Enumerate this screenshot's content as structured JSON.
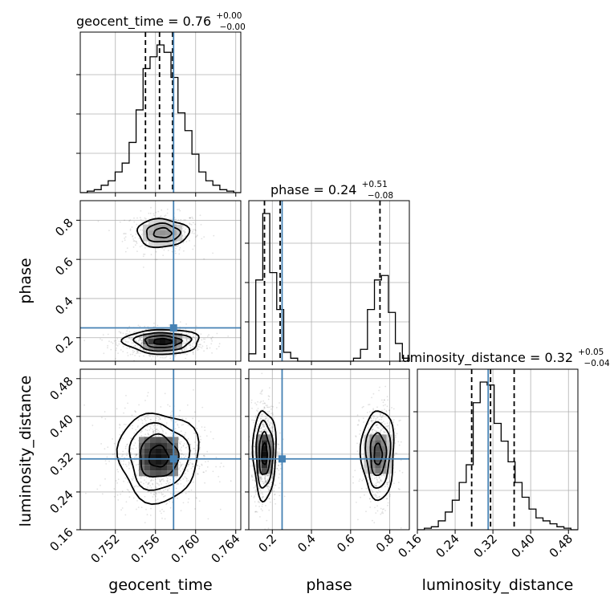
{
  "chart_data": {
    "type": "corner",
    "parameters": [
      {
        "name": "geocent_time",
        "axis_label": "geocent_time",
        "range": [
          0.7485,
          0.7645
        ],
        "ticks": [
          "0.752",
          "0.756",
          "0.760",
          "0.764"
        ],
        "tick_values": [
          0.752,
          0.756,
          0.76,
          0.764
        ],
        "truth": 0.7578,
        "median": 0.7564,
        "q16": 0.755,
        "q84": 0.7577,
        "title_main": "geocent_time = 0.76",
        "title_sup": "+0.00",
        "title_sub": "−0.00",
        "hist_bins": [
          0.0,
          0.01,
          0.02,
          0.05,
          0.08,
          0.14,
          0.2,
          0.34,
          0.56,
          0.84,
          0.92,
          1.0,
          0.95,
          0.78,
          0.54,
          0.42,
          0.26,
          0.14,
          0.08,
          0.05,
          0.02,
          0.01,
          0.0
        ]
      },
      {
        "name": "phase",
        "axis_label": "phase",
        "range": [
          0.08,
          0.9
        ],
        "ticks": [
          "0.2",
          "0.4",
          "0.6",
          "0.8"
        ],
        "tick_values": [
          0.2,
          0.4,
          0.6,
          0.8
        ],
        "truth": 0.25,
        "median": 0.24,
        "q16": 0.16,
        "q84": 0.75,
        "title_main": "phase = 0.24",
        "title_sup": "+0.51",
        "title_sub": "−0.08",
        "hist_bins": [
          0.05,
          0.55,
          1.0,
          0.6,
          0.35,
          0.06,
          0.02,
          0.0,
          0.0,
          0.0,
          0.0,
          0.0,
          0.0,
          0.0,
          0.0,
          0.02,
          0.08,
          0.35,
          0.55,
          0.58,
          0.33,
          0.12,
          0.02
        ]
      },
      {
        "name": "luminosity_distance",
        "axis_label": "luminosity_distance",
        "range": [
          0.16,
          0.5
        ],
        "ticks": [
          "0.16",
          "0.24",
          "0.32",
          "0.40",
          "0.48"
        ],
        "tick_values": [
          0.16,
          0.24,
          0.32,
          0.4,
          0.48
        ],
        "truth": 0.31,
        "median": 0.315,
        "q16": 0.275,
        "q84": 0.365,
        "title_main": "luminosity_distance = 0.32",
        "title_sup": "+0.05",
        "title_sub": "−0.04",
        "hist_bins": [
          0.0,
          0.01,
          0.02,
          0.06,
          0.12,
          0.2,
          0.32,
          0.44,
          0.86,
          1.0,
          0.98,
          0.72,
          0.6,
          0.46,
          0.32,
          0.22,
          0.14,
          0.08,
          0.06,
          0.04,
          0.02,
          0.01,
          0.0
        ]
      }
    ],
    "density_2d": [
      {
        "x": "geocent_time",
        "y": "phase",
        "blobs": [
          {
            "cx": 0.7567,
            "cy": 0.735,
            "sx": 0.0016,
            "sy": 0.045,
            "rot": 0,
            "weight": 0.45
          },
          {
            "cx": 0.7567,
            "cy": 0.18,
            "sx": 0.0018,
            "sy": 0.03,
            "rot": 0,
            "weight": 1.0
          }
        ],
        "truth_point": [
          0.7578,
          0.25
        ]
      },
      {
        "x": "geocent_time",
        "y": "luminosity_distance",
        "blobs": [
          {
            "cx": 0.7563,
            "cy": 0.315,
            "sx": 0.0019,
            "sy": 0.045,
            "rot": 0,
            "weight": 1.0
          }
        ],
        "truth_point": [
          0.7578,
          0.31
        ]
      },
      {
        "x": "phase",
        "y": "luminosity_distance",
        "blobs": [
          {
            "cx": 0.16,
            "cy": 0.32,
            "sx": 0.028,
            "sy": 0.045,
            "rot": 0,
            "weight": 1.0
          },
          {
            "cx": 0.74,
            "cy": 0.32,
            "sx": 0.04,
            "sy": 0.045,
            "rot": 0,
            "weight": 0.75
          }
        ],
        "truth_point": [
          0.25,
          0.31
        ]
      }
    ],
    "truth_color": "#4682b4",
    "grid": true
  }
}
